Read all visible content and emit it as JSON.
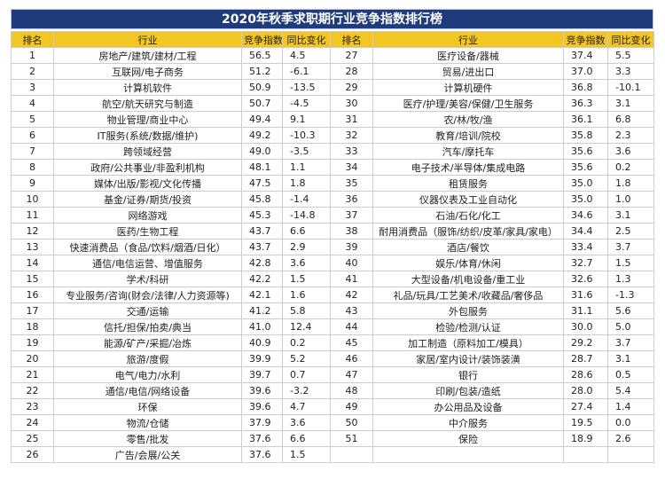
{
  "title": "2020年秋季求职期行业竞争指数排行榜",
  "table": {
    "headers": [
      "排名",
      "行业",
      "竞争指数",
      "同比变化",
      "排名",
      "行业",
      "竞争指数",
      "同比变化"
    ],
    "rows": [
      [
        "1",
        "房地产/建筑/建材/工程",
        "56.5",
        "4.5",
        "27",
        "医疗设备/器械",
        "37.4",
        "5.5"
      ],
      [
        "2",
        "互联网/电子商务",
        "51.2",
        "-6.1",
        "28",
        "贸易/进出口",
        "37.0",
        "3.3"
      ],
      [
        "3",
        "计算机软件",
        "50.9",
        "-13.5",
        "29",
        "计算机硬件",
        "36.8",
        "-10.1"
      ],
      [
        "4",
        "航空/航天研究与制造",
        "50.7",
        "-4.5",
        "30",
        "医疗/护理/美容/保健/卫生服务",
        "36.3",
        "3.1"
      ],
      [
        "5",
        "物业管理/商业中心",
        "49.4",
        "9.1",
        "31",
        "农/林/牧/渔",
        "36.1",
        "6.8"
      ],
      [
        "6",
        "IT服务(系统/数据/维护)",
        "49.2",
        "-10.3",
        "32",
        "教育/培训/院校",
        "35.8",
        "2.3"
      ],
      [
        "7",
        "跨领域经营",
        "49.0",
        "-3.5",
        "33",
        "汽车/摩托车",
        "35.6",
        "3.6"
      ],
      [
        "8",
        "政府/公共事业/非盈利机构",
        "48.1",
        "1.1",
        "34",
        "电子技术/半导体/集成电路",
        "35.6",
        "0.2"
      ],
      [
        "9",
        "媒体/出版/影视/文化传播",
        "47.5",
        "1.8",
        "35",
        "租赁服务",
        "35.0",
        "1.8"
      ],
      [
        "10",
        "基金/证券/期货/投资",
        "45.8",
        "-1.4",
        "36",
        "仪器仪表及工业自动化",
        "35.0",
        "1.0"
      ],
      [
        "11",
        "网络游戏",
        "45.3",
        "-14.8",
        "37",
        "石油/石化/化工",
        "34.6",
        "3.1"
      ],
      [
        "12",
        "医药/生物工程",
        "43.7",
        "6.6",
        "38",
        "耐用消费品（服饰/纺织/皮革/家具/家电）",
        "34.4",
        "2.5"
      ],
      [
        "13",
        "快速消费品（食品/饮料/烟酒/日化）",
        "43.7",
        "2.9",
        "39",
        "酒店/餐饮",
        "33.4",
        "3.7"
      ],
      [
        "14",
        "通信/电信运营、增值服务",
        "42.8",
        "3.6",
        "40",
        "娱乐/体育/休闲",
        "32.7",
        "1.5"
      ],
      [
        "15",
        "学术/科研",
        "42.2",
        "1.5",
        "41",
        "大型设备/机电设备/重工业",
        "32.6",
        "1.3"
      ],
      [
        "16",
        "专业服务/咨询(财会/法律/人力资源等)",
        "42.1",
        "1.6",
        "42",
        "礼品/玩具/工艺美术/收藏品/奢侈品",
        "31.6",
        "-1.3"
      ],
      [
        "17",
        "交通/运输",
        "41.2",
        "5.8",
        "43",
        "外包服务",
        "31.1",
        "5.6"
      ],
      [
        "18",
        "信托/担保/拍卖/典当",
        "41.0",
        "12.4",
        "44",
        "检验/检测/认证",
        "30.0",
        "5.0"
      ],
      [
        "19",
        "能源/矿产/采掘/冶炼",
        "40.9",
        "0.2",
        "45",
        "加工制造（原料加工/模具）",
        "29.2",
        "3.7"
      ],
      [
        "20",
        "旅游/度假",
        "39.9",
        "5.2",
        "46",
        "家居/室内设计/装饰装潢",
        "28.7",
        "3.1"
      ],
      [
        "21",
        "电气/电力/水利",
        "39.7",
        "0.7",
        "47",
        "银行",
        "28.6",
        "0.5"
      ],
      [
        "22",
        "通信/电信/网络设备",
        "39.6",
        "-3.2",
        "48",
        "印刷/包装/造纸",
        "28.0",
        "5.4"
      ],
      [
        "23",
        "环保",
        "39.6",
        "4.7",
        "49",
        "办公用品及设备",
        "27.4",
        "1.4"
      ],
      [
        "24",
        "物流/仓储",
        "37.9",
        "3.6",
        "50",
        "中介服务",
        "19.5",
        "0.0"
      ],
      [
        "25",
        "零售/批发",
        "37.6",
        "6.6",
        "51",
        "保险",
        "18.9",
        "2.6"
      ],
      [
        "26",
        "广告/会展/公关",
        "37.6",
        "1.5"
      ]
    ]
  }
}
